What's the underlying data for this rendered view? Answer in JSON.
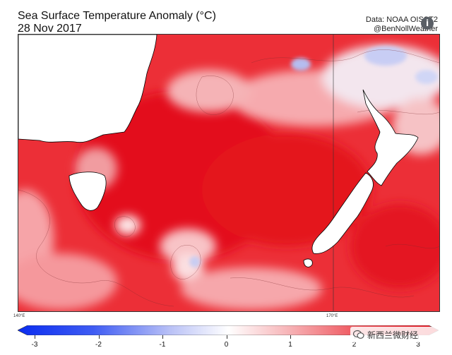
{
  "header": {
    "title": "Sea Surface Temperature Anomaly (°C)",
    "date": "28 Nov 2017",
    "source": "Data: NOAA OISST2",
    "handle": "@BenNollWeather",
    "info_glyph": "i"
  },
  "map": {
    "lon_labels": [
      "140°E",
      "170°E"
    ]
  },
  "colorbar": {
    "ticks": [
      "-3",
      "-2",
      "-1",
      "0",
      "1",
      "2",
      "3"
    ],
    "min": -3,
    "max": 3,
    "colors": {
      "cold": "#0a2cf0",
      "neutral": "#ffffff",
      "warm": "#e8101c"
    }
  },
  "watermark": {
    "text": "新西兰微财经",
    "icon": "wechat-icon"
  }
}
